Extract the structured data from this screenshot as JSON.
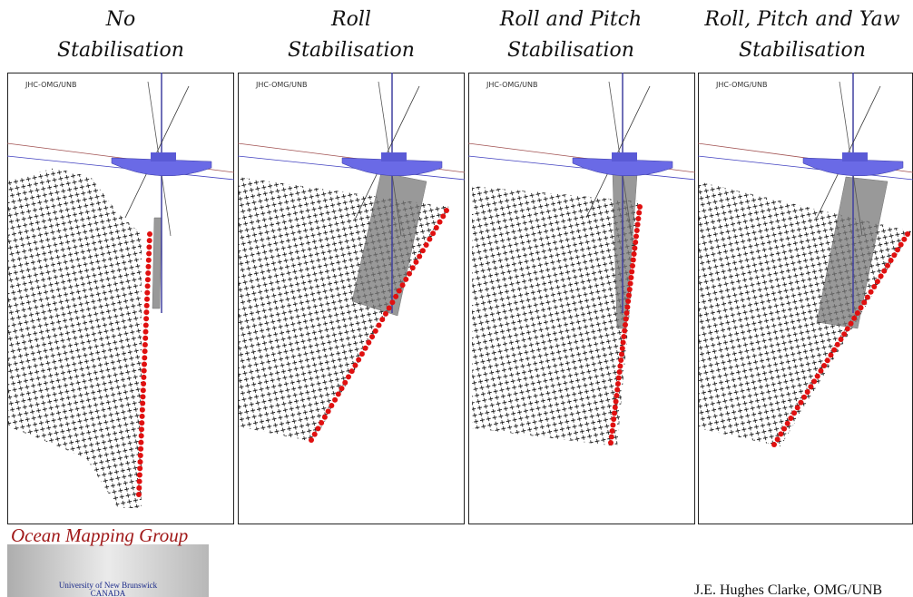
{
  "panels": [
    {
      "title": [
        "No",
        "Stabilisation"
      ],
      "watermark": "JHC-OMG/UNB"
    },
    {
      "title": [
        "Roll",
        "Stabilisation"
      ],
      "watermark": "JHC-OMG/UNB"
    },
    {
      "title": [
        "Roll and Pitch",
        "Stabilisation"
      ],
      "watermark": "JHC-OMG/UNB"
    },
    {
      "title": [
        "Roll, Pitch and Yaw",
        "Stabilisation"
      ],
      "watermark": "JHC-OMG/UNB"
    }
  ],
  "logo": {
    "title": "Ocean Mapping Group",
    "university": "University of New Brunswick",
    "country": "CANADA"
  },
  "credit": "J.E. Hughes Clarke, OMG/UNB"
}
